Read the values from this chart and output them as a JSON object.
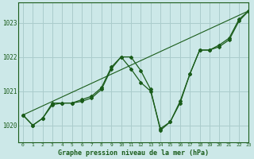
{
  "bg_color": "#cce8e8",
  "grid_color": "#aacccc",
  "line_color": "#1a5c1a",
  "title": "Graphe pression niveau de la mer (hPa)",
  "xlim": [
    -0.5,
    23
  ],
  "ylim": [
    1019.5,
    1023.6
  ],
  "yticks": [
    1020,
    1021,
    1022,
    1023
  ],
  "xticks": [
    0,
    1,
    2,
    3,
    4,
    5,
    6,
    7,
    8,
    9,
    10,
    11,
    12,
    13,
    14,
    15,
    16,
    17,
    18,
    19,
    20,
    21,
    22,
    23
  ],
  "series1": {
    "x": [
      0,
      1,
      2,
      3,
      4,
      5,
      6,
      7,
      8,
      9,
      10,
      11,
      12,
      13,
      14,
      15,
      16,
      17,
      18,
      19,
      20,
      21,
      22,
      23
    ],
    "y": [
      1020.3,
      1020.0,
      1020.2,
      1020.65,
      1020.65,
      1020.65,
      1020.7,
      1020.8,
      1021.05,
      1021.65,
      1022.0,
      1022.0,
      1021.6,
      1021.05,
      1019.85,
      1020.1,
      1020.65,
      1021.5,
      1022.2,
      1022.2,
      1022.3,
      1022.5,
      1023.05,
      1023.35
    ]
  },
  "series2": {
    "x": [
      0,
      1,
      2,
      3,
      4,
      5,
      6,
      7,
      8,
      9,
      10,
      11,
      12,
      13,
      14,
      15,
      16,
      17,
      18,
      19,
      20,
      21,
      22,
      23
    ],
    "y": [
      1020.3,
      1020.0,
      1020.2,
      1020.6,
      1020.65,
      1020.65,
      1020.75,
      1020.85,
      1021.1,
      1021.7,
      1022.0,
      1021.65,
      1021.25,
      1021.0,
      1019.9,
      1020.1,
      1020.7,
      1021.5,
      1022.2,
      1022.2,
      1022.35,
      1022.55,
      1023.1,
      1023.35
    ]
  },
  "series3": {
    "x": [
      0,
      23
    ],
    "y": [
      1020.3,
      1023.35
    ]
  }
}
